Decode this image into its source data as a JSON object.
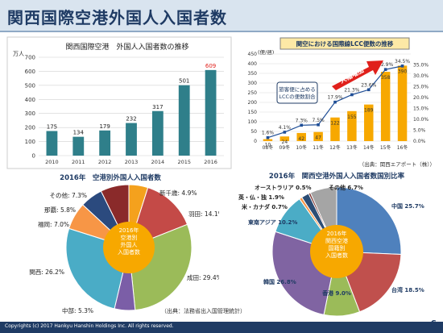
{
  "slide": {
    "title": "関西国際空港外国人入国者数",
    "copyright": "Copyrights (c) 2017 Hankyu Hanshin Holdings Inc. All rights reserved.",
    "page_number": "6",
    "colors": {
      "header_bg": "#d9e4ef",
      "accent": "#1f3b64",
      "highlight_red": "#e0201b",
      "bar_teal": "#2f7f8a"
    }
  },
  "chart_data": [
    {
      "type": "bar",
      "title": "関西国際空港　外国人入国者数の推移",
      "ylabel": "万人",
      "categories": [
        "2010",
        "2011",
        "2012",
        "2013",
        "2014",
        "2015",
        "2016"
      ],
      "values": [
        175,
        134,
        179,
        232,
        317,
        501,
        609
      ],
      "value_labels": [
        "175",
        "134",
        "179",
        "232",
        "317",
        "501",
        "609"
      ],
      "highlight_index": 6,
      "ylim": [
        0,
        700
      ],
      "yticks": [
        0,
        100,
        200,
        300,
        400,
        500,
        600,
        700
      ],
      "grid": true
    },
    {
      "type": "bar",
      "title": "関空における国際線LCC便数の推移",
      "y_left_label": "(便/週)",
      "categories": [
        "08冬",
        "09冬",
        "10冬",
        "11冬",
        "12冬",
        "13冬",
        "14冬",
        "15冬",
        "16冬"
      ],
      "bar_values": [
        10,
        24,
        42,
        47,
        122,
        155,
        189,
        358,
        390
      ],
      "bar_labels": [
        "10",
        "24",
        "42",
        "47",
        "122",
        "155",
        "189",
        "358",
        "390"
      ],
      "line_values": [
        1.6,
        4.1,
        7.3,
        7.5,
        17.9,
        21.3,
        23.6,
        32.9,
        34.5
      ],
      "line_labels": [
        "1.6%",
        "4.1%",
        "7.3%",
        "7.5%",
        "17.9%",
        "21.3%",
        "23.6%",
        "32.9%",
        "34.5%"
      ],
      "ylim_left": [
        0,
        450
      ],
      "yticks_left": [
        0,
        50,
        100,
        150,
        200,
        250,
        300,
        350,
        400,
        450
      ],
      "ylim_right": [
        0,
        40
      ],
      "yticks_right": [
        "0.0%",
        "5.0%",
        "10.0%",
        "15.0%",
        "20.0%",
        "25.0%",
        "30.0%",
        "35.0%"
      ],
      "annotation": "旅客便に占める LCCの便数割合",
      "arrow_label": "大幅増加",
      "source": "（出典：関西エアポート（株））"
    },
    {
      "type": "pie",
      "title": "2016年　空港別外国人入国者数",
      "center_label": "2016年 空港別 外国人 入国者数",
      "slices": [
        {
          "label": "新千歳",
          "percent": 4.9,
          "text": "新千歳: 4.9%",
          "color": "#f4a11d"
        },
        {
          "label": "羽田",
          "percent": 14.1,
          "text": "羽田: 14.1%",
          "color": "#c44a47"
        },
        {
          "label": "成田",
          "percent": 29.4,
          "text": "成田: 29.4%",
          "color": "#9bbb59"
        },
        {
          "label": "中部",
          "percent": 5.3,
          "text": "中部: 5.3%",
          "color": "#7b5ea7"
        },
        {
          "label": "関西",
          "percent": 26.2,
          "text": "関西: 26.2%",
          "color": "#4aacc6"
        },
        {
          "label": "福岡",
          "percent": 7.0,
          "text": "福岡: 7.0%",
          "color": "#f79646"
        },
        {
          "label": "那覇",
          "percent": 5.8,
          "text": "那覇: 5.8%",
          "color": "#2b4a7e"
        },
        {
          "label": "その他",
          "percent": 7.3,
          "text": "その他: 7.3%",
          "color": "#8a2a2a"
        }
      ],
      "source": "（出典：法務省出入国管理統計）"
    },
    {
      "type": "pie",
      "title": "2016年　関西空港外国人入国者数国別比率",
      "center_label": "2016年 関西空港 国籍別 入国者数",
      "slices": [
        {
          "label": "中国",
          "percent": 25.7,
          "text": "中国 25.7%",
          "color": "#4f81bd"
        },
        {
          "label": "台湾",
          "percent": 18.5,
          "text": "台湾 18.5%",
          "color": "#c0504d"
        },
        {
          "label": "香港",
          "percent": 9.0,
          "text": "香港 9.0%",
          "color": "#9bbb59"
        },
        {
          "label": "韓国",
          "percent": 26.8,
          "text": "韓国 26.8%",
          "color": "#8064a2"
        },
        {
          "label": "東南アジア",
          "percent": 10.2,
          "text": "東南アジア 10.2%",
          "color": "#4bacc6"
        },
        {
          "label": "米・カナダ",
          "percent": 0.7,
          "text": "米・カナダ 0.7%",
          "color": "#f79646"
        },
        {
          "label": "英・仏・独",
          "percent": 1.9,
          "text": "英・仏・独 1.9%",
          "color": "#2c4d75"
        },
        {
          "label": "オーストラリア",
          "percent": 0.5,
          "text": "オーストラリア 0.5%",
          "color": "#772c2a"
        },
        {
          "label": "その他",
          "percent": 6.7,
          "text": "その他 6.7%",
          "color": "#a5a5a5"
        }
      ]
    }
  ]
}
